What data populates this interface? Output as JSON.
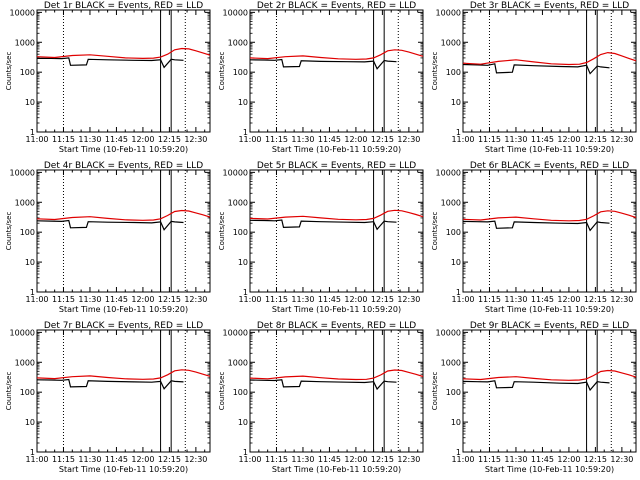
{
  "chart_data": [
    {
      "type": "line",
      "title": "Det 1r BLACK = Events, RED = LLD",
      "xlabel": "Start Time (10-Feb-11 10:59:20)",
      "ylabel": "Counts/sec",
      "x_tick_labels": [
        "11:00",
        "11:15",
        "11:30",
        "11:45",
        "12:00",
        "12:15",
        "12:30"
      ],
      "y_tick_labels": [
        "1",
        "10",
        "100",
        "1000",
        "10000"
      ],
      "y_scale": "log",
      "ylim": [
        1,
        12000
      ],
      "xlim_minutes": [
        0,
        98
      ],
      "dotted_lines_minutes": [
        15,
        84
      ],
      "solid_lines_minutes": [
        70,
        76
      ],
      "series": [
        {
          "name": "BLACK = Events",
          "color": "#000000",
          "x": [
            0,
            8,
            14,
            18,
            19,
            28,
            29,
            40,
            55,
            65,
            70,
            72,
            76,
            78,
            83
          ],
          "y": [
            290,
            290,
            285,
            300,
            170,
            175,
            270,
            260,
            250,
            245,
            260,
            145,
            270,
            260,
            250
          ]
        },
        {
          "name": "RED = LLD",
          "color": "#e00000",
          "x": [
            0,
            10,
            20,
            30,
            40,
            50,
            60,
            66,
            70,
            74,
            78,
            82,
            86,
            90,
            94,
            98
          ],
          "y": [
            330,
            310,
            360,
            380,
            340,
            300,
            290,
            295,
            320,
            400,
            560,
            620,
            600,
            520,
            440,
            370
          ]
        }
      ]
    },
    {
      "type": "line",
      "title": "Det 2r BLACK = Events, RED = LLD",
      "xlabel": "Start Time (10-Feb-11 10:59:20)",
      "ylabel": "Counts/sec",
      "x_tick_labels": [
        "11:00",
        "11:15",
        "11:30",
        "11:45",
        "12:00",
        "12:15",
        "12:30"
      ],
      "y_tick_labels": [
        "1",
        "10",
        "100",
        "1000",
        "10000"
      ],
      "y_scale": "log",
      "ylim": [
        1,
        12000
      ],
      "xlim_minutes": [
        0,
        98
      ],
      "dotted_lines_minutes": [
        15,
        84
      ],
      "solid_lines_minutes": [
        70,
        76
      ],
      "series": [
        {
          "name": "BLACK = Events",
          "color": "#000000",
          "x": [
            0,
            8,
            14,
            18,
            19,
            28,
            29,
            40,
            55,
            65,
            70,
            72,
            76,
            78,
            83
          ],
          "y": [
            260,
            255,
            250,
            265,
            150,
            155,
            240,
            230,
            225,
            220,
            235,
            130,
            245,
            235,
            225
          ]
        },
        {
          "name": "RED = LLD",
          "color": "#e00000",
          "x": [
            0,
            10,
            20,
            30,
            40,
            50,
            60,
            66,
            70,
            74,
            78,
            82,
            86,
            90,
            94,
            98
          ],
          "y": [
            300,
            285,
            330,
            350,
            310,
            280,
            270,
            275,
            300,
            380,
            520,
            560,
            540,
            470,
            400,
            340
          ]
        }
      ]
    },
    {
      "type": "line",
      "title": "Det 3r BLACK = Events, RED = LLD",
      "xlabel": "Start Time (10-Feb-11 10:59:20)",
      "ylabel": "Counts/sec",
      "x_tick_labels": [
        "11:00",
        "11:15",
        "11:30",
        "11:45",
        "12:00",
        "12:15",
        "12:30"
      ],
      "y_tick_labels": [
        "1",
        "10",
        "100",
        "1000",
        "10000"
      ],
      "y_scale": "log",
      "ylim": [
        1,
        12000
      ],
      "xlim_minutes": [
        0,
        98
      ],
      "dotted_lines_minutes": [
        15,
        84
      ],
      "solid_lines_minutes": [
        70,
        76
      ],
      "series": [
        {
          "name": "BLACK = Events",
          "color": "#000000",
          "x": [
            0,
            8,
            14,
            18,
            19,
            28,
            29,
            40,
            55,
            65,
            70,
            72,
            76,
            78,
            83
          ],
          "y": [
            180,
            175,
            170,
            190,
            95,
            100,
            175,
            165,
            155,
            150,
            170,
            90,
            160,
            150,
            140
          ]
        },
        {
          "name": "RED = LLD",
          "color": "#e00000",
          "x": [
            0,
            10,
            20,
            30,
            40,
            50,
            60,
            66,
            70,
            74,
            78,
            82,
            86,
            90,
            94,
            98
          ],
          "y": [
            200,
            185,
            230,
            260,
            220,
            190,
            180,
            185,
            210,
            280,
            390,
            450,
            420,
            350,
            290,
            240
          ]
        }
      ]
    },
    {
      "type": "line",
      "title": "Det 4r BLACK = Events, RED = LLD",
      "xlabel": "Start Time (10-Feb-11 10:59:20)",
      "ylabel": "Counts/sec",
      "x_tick_labels": [
        "11:00",
        "11:15",
        "11:30",
        "11:45",
        "12:00",
        "12:15",
        "12:30"
      ],
      "y_tick_labels": [
        "1",
        "10",
        "100",
        "1000",
        "10000"
      ],
      "y_scale": "log",
      "ylim": [
        1,
        12000
      ],
      "xlim_minutes": [
        0,
        98
      ],
      "dotted_lines_minutes": [
        15,
        84
      ],
      "solid_lines_minutes": [
        70,
        76
      ],
      "series": [
        {
          "name": "BLACK = Events",
          "color": "#000000",
          "x": [
            0,
            8,
            14,
            18,
            19,
            28,
            29,
            40,
            55,
            65,
            70,
            72,
            76,
            78,
            83
          ],
          "y": [
            240,
            235,
            230,
            245,
            140,
            145,
            225,
            215,
            210,
            205,
            220,
            120,
            230,
            220,
            210
          ]
        },
        {
          "name": "RED = LLD",
          "color": "#e00000",
          "x": [
            0,
            10,
            20,
            30,
            40,
            50,
            60,
            66,
            70,
            74,
            78,
            82,
            86,
            90,
            94,
            98
          ],
          "y": [
            280,
            265,
            310,
            330,
            290,
            260,
            250,
            255,
            280,
            360,
            490,
            530,
            510,
            440,
            380,
            320
          ]
        }
      ]
    },
    {
      "type": "line",
      "title": "Det 5r BLACK = Events, RED = LLD",
      "xlabel": "Start Time (10-Feb-11 10:59:20)",
      "ylabel": "Counts/sec",
      "x_tick_labels": [
        "11:00",
        "11:15",
        "11:30",
        "11:45",
        "12:00",
        "12:15",
        "12:30"
      ],
      "y_tick_labels": [
        "1",
        "10",
        "100",
        "1000",
        "10000"
      ],
      "y_scale": "log",
      "ylim": [
        1,
        12000
      ],
      "xlim_minutes": [
        0,
        98
      ],
      "dotted_lines_minutes": [
        15,
        84
      ],
      "solid_lines_minutes": [
        70,
        76
      ],
      "series": [
        {
          "name": "BLACK = Events",
          "color": "#000000",
          "x": [
            0,
            8,
            14,
            18,
            19,
            28,
            29,
            40,
            55,
            65,
            70,
            72,
            76,
            78,
            83
          ],
          "y": [
            250,
            245,
            240,
            255,
            145,
            150,
            235,
            225,
            215,
            210,
            225,
            125,
            235,
            225,
            215
          ]
        },
        {
          "name": "RED = LLD",
          "color": "#e00000",
          "x": [
            0,
            10,
            20,
            30,
            40,
            50,
            60,
            66,
            70,
            74,
            78,
            82,
            86,
            90,
            94,
            98
          ],
          "y": [
            290,
            275,
            320,
            340,
            300,
            270,
            260,
            265,
            290,
            370,
            500,
            540,
            520,
            450,
            390,
            330
          ]
        }
      ]
    },
    {
      "type": "line",
      "title": "Det 6r BLACK = Events, RED = LLD",
      "xlabel": "Start Time (10-Feb-11 10:59:20)",
      "ylabel": "Counts/sec",
      "x_tick_labels": [
        "11:00",
        "11:15",
        "11:30",
        "11:45",
        "12:00",
        "12:15",
        "12:30"
      ],
      "y_tick_labels": [
        "1",
        "10",
        "100",
        "1000",
        "10000"
      ],
      "y_scale": "log",
      "ylim": [
        1,
        12000
      ],
      "xlim_minutes": [
        0,
        98
      ],
      "dotted_lines_minutes": [
        15,
        84
      ],
      "solid_lines_minutes": [
        70,
        76
      ],
      "series": [
        {
          "name": "BLACK = Events",
          "color": "#000000",
          "x": [
            0,
            8,
            14,
            18,
            19,
            28,
            29,
            40,
            55,
            65,
            70,
            72,
            76,
            78,
            83
          ],
          "y": [
            230,
            225,
            220,
            235,
            135,
            140,
            220,
            210,
            200,
            195,
            210,
            115,
            220,
            210,
            200
          ]
        },
        {
          "name": "RED = LLD",
          "color": "#e00000",
          "x": [
            0,
            10,
            20,
            30,
            40,
            50,
            60,
            66,
            70,
            74,
            78,
            82,
            86,
            90,
            94,
            98
          ],
          "y": [
            270,
            255,
            300,
            320,
            280,
            250,
            240,
            245,
            270,
            350,
            480,
            520,
            500,
            430,
            370,
            310
          ]
        }
      ]
    },
    {
      "type": "line",
      "title": "Det 7r BLACK = Events, RED = LLD",
      "xlabel": "Start Time (10-Feb-11 10:59:20)",
      "ylabel": "Counts/sec",
      "x_tick_labels": [
        "11:00",
        "11:15",
        "11:30",
        "11:45",
        "12:00",
        "12:15",
        "12:30"
      ],
      "y_tick_labels": [
        "1",
        "10",
        "100",
        "1000",
        "10000"
      ],
      "y_scale": "log",
      "ylim": [
        1,
        12000
      ],
      "xlim_minutes": [
        0,
        98
      ],
      "dotted_lines_minutes": [
        15,
        84
      ],
      "solid_lines_minutes": [
        70,
        76
      ],
      "series": [
        {
          "name": "BLACK = Events",
          "color": "#000000",
          "x": [
            0,
            8,
            14,
            18,
            19,
            28,
            29,
            40,
            55,
            65,
            70,
            72,
            76,
            78,
            83
          ],
          "y": [
            260,
            255,
            250,
            265,
            150,
            155,
            240,
            230,
            220,
            215,
            230,
            130,
            240,
            230,
            220
          ]
        },
        {
          "name": "RED = LLD",
          "color": "#e00000",
          "x": [
            0,
            10,
            20,
            30,
            40,
            50,
            60,
            66,
            70,
            74,
            78,
            82,
            86,
            90,
            94,
            98
          ],
          "y": [
            300,
            285,
            330,
            350,
            310,
            280,
            270,
            275,
            300,
            380,
            520,
            560,
            540,
            470,
            400,
            340
          ]
        }
      ]
    },
    {
      "type": "line",
      "title": "Det 8r BLACK = Events, RED = LLD",
      "xlabel": "Start Time (10-Feb-11 10:59:20)",
      "ylabel": "Counts/sec",
      "x_tick_labels": [
        "11:00",
        "11:15",
        "11:30",
        "11:45",
        "12:00",
        "12:15",
        "12:30"
      ],
      "y_tick_labels": [
        "1",
        "10",
        "100",
        "1000",
        "10000"
      ],
      "y_scale": "log",
      "ylim": [
        1,
        12000
      ],
      "xlim_minutes": [
        0,
        98
      ],
      "dotted_lines_minutes": [
        15,
        84
      ],
      "solid_lines_minutes": [
        70,
        76
      ],
      "series": [
        {
          "name": "BLACK = Events",
          "color": "#000000",
          "x": [
            0,
            8,
            14,
            18,
            19,
            28,
            29,
            40,
            55,
            65,
            70,
            72,
            76,
            78,
            83
          ],
          "y": [
            255,
            250,
            245,
            260,
            150,
            155,
            235,
            225,
            215,
            210,
            225,
            128,
            235,
            225,
            215
          ]
        },
        {
          "name": "RED = LLD",
          "color": "#e00000",
          "x": [
            0,
            10,
            20,
            30,
            40,
            50,
            60,
            66,
            70,
            74,
            78,
            82,
            86,
            90,
            94,
            98
          ],
          "y": [
            295,
            280,
            325,
            345,
            305,
            275,
            265,
            270,
            295,
            375,
            510,
            550,
            530,
            460,
            395,
            335
          ]
        }
      ]
    },
    {
      "type": "line",
      "title": "Det 9r BLACK = Events, RED = LLD",
      "xlabel": "Start Time (10-Feb-11 10:59:20)",
      "ylabel": "Counts/sec",
      "x_tick_labels": [
        "11:00",
        "11:15",
        "11:30",
        "11:45",
        "12:00",
        "12:15",
        "12:30"
      ],
      "y_tick_labels": [
        "1",
        "10",
        "100",
        "1000",
        "10000"
      ],
      "y_scale": "log",
      "ylim": [
        1,
        12000
      ],
      "xlim_minutes": [
        0,
        98
      ],
      "dotted_lines_minutes": [
        15,
        84
      ],
      "solid_lines_minutes": [
        70,
        76
      ],
      "series": [
        {
          "name": "BLACK = Events",
          "color": "#000000",
          "x": [
            0,
            8,
            14,
            18,
            19,
            28,
            29,
            40,
            55,
            65,
            70,
            72,
            76,
            78,
            83
          ],
          "y": [
            230,
            225,
            220,
            240,
            140,
            145,
            225,
            215,
            200,
            195,
            215,
            118,
            225,
            215,
            205
          ]
        },
        {
          "name": "RED = LLD",
          "color": "#e00000",
          "x": [
            0,
            10,
            20,
            30,
            40,
            50,
            60,
            66,
            70,
            74,
            78,
            82,
            86,
            90,
            94,
            98
          ],
          "y": [
            280,
            265,
            310,
            330,
            290,
            260,
            250,
            255,
            280,
            360,
            490,
            530,
            510,
            440,
            380,
            320
          ]
        }
      ]
    }
  ]
}
